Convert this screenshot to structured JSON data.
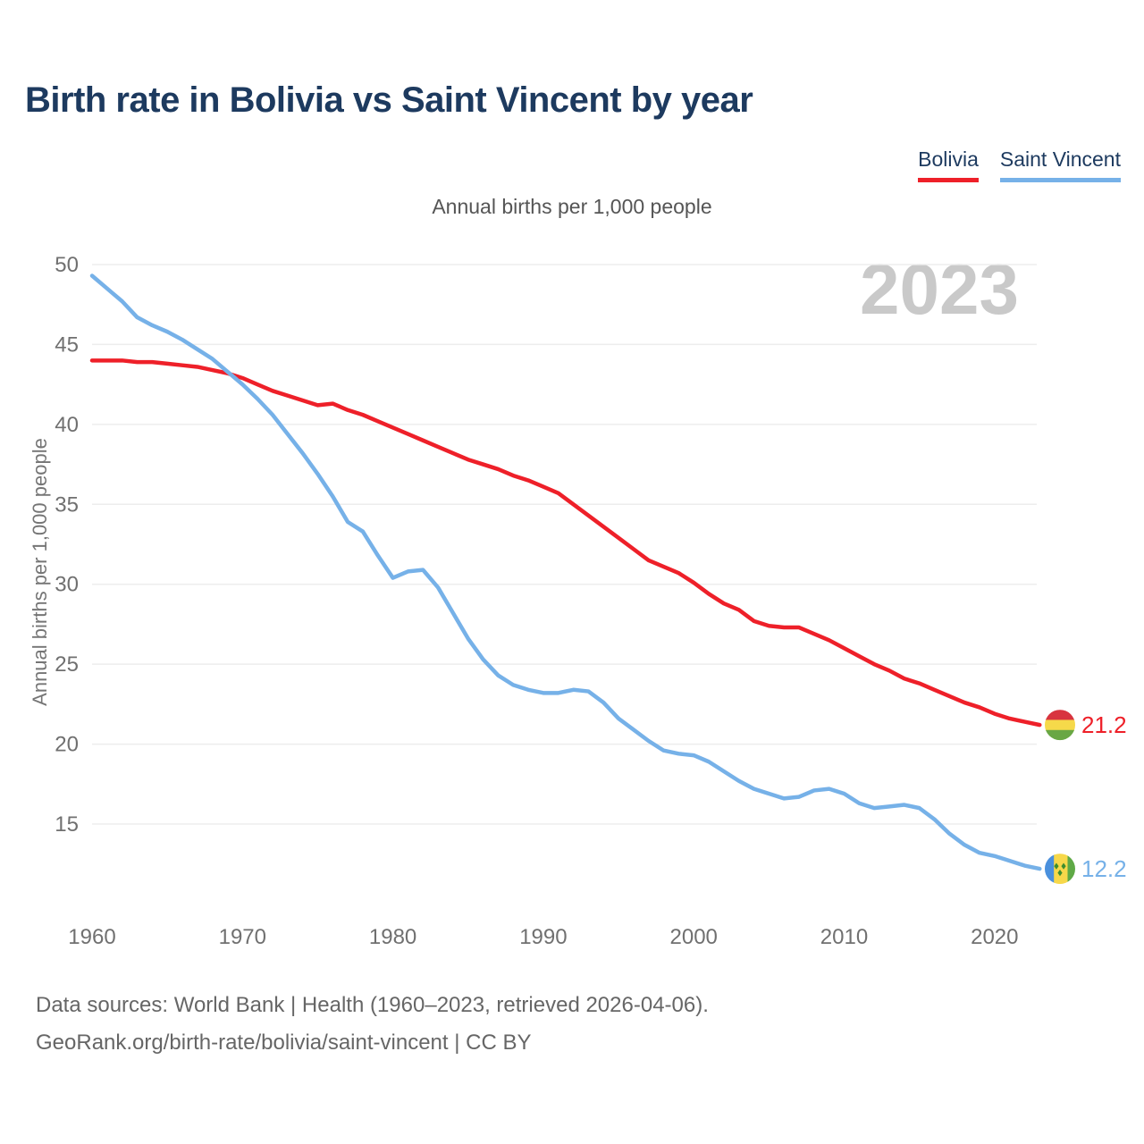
{
  "title": "Birth rate in Bolivia vs Saint Vincent by year",
  "subtitle": "Annual births per 1,000 people",
  "watermark_year": "2023",
  "y_axis_title": "Annual births per 1,000 people",
  "legend": [
    {
      "label": "Bolivia",
      "color": "#ee2029"
    },
    {
      "label": "Saint Vincent",
      "color": "#76b1e8"
    }
  ],
  "footer": {
    "line1": "Data sources: World Bank | Health (1960–2023, retrieved 2026-04-06).",
    "line2": "GeoRank.org/birth-rate/bolivia/saint-vincent | CC BY"
  },
  "colors": {
    "title": "#1d3a5f",
    "bolivia_line": "#ee2029",
    "saint_vincent_line": "#76b1e8",
    "axis_text": "#707070",
    "grid_line": "#ededed",
    "watermark": "#c9c9c9",
    "footer_text": "#666666"
  },
  "icons": {
    "bolivia_flag": {
      "stripes": [
        "#d8343f",
        "#f6d94a",
        "#69a744"
      ],
      "orientation": "horizontal"
    },
    "saint_vincent_flag": {
      "stripes": [
        "#4a90dd",
        "#f7d84a",
        "#5fa946"
      ],
      "diamond_color": "#3e8e2e",
      "orientation": "vertical"
    }
  },
  "chart_data": {
    "type": "line",
    "title": "Birth rate in Bolivia vs Saint Vincent by year",
    "subtitle": "Annual births per 1,000 people",
    "ylabel": "Annual births per 1,000 people",
    "xlabel": "",
    "grid": "horizontal",
    "legend_position": "top-right",
    "xticks": [
      1960,
      1970,
      1980,
      1990,
      2000,
      2010,
      2020
    ],
    "yticks": [
      15,
      20,
      25,
      30,
      35,
      40,
      45,
      50
    ],
    "xlim": [
      1960,
      2023
    ],
    "ylim": [
      11,
      51
    ],
    "x": [
      1960,
      1961,
      1962,
      1963,
      1964,
      1965,
      1966,
      1967,
      1968,
      1969,
      1970,
      1971,
      1972,
      1973,
      1974,
      1975,
      1976,
      1977,
      1978,
      1979,
      1980,
      1981,
      1982,
      1983,
      1984,
      1985,
      1986,
      1987,
      1988,
      1989,
      1990,
      1991,
      1992,
      1993,
      1994,
      1995,
      1996,
      1997,
      1998,
      1999,
      2000,
      2001,
      2002,
      2003,
      2004,
      2005,
      2006,
      2007,
      2008,
      2009,
      2010,
      2011,
      2012,
      2013,
      2014,
      2015,
      2016,
      2017,
      2018,
      2019,
      2020,
      2021,
      2022,
      2023
    ],
    "series": [
      {
        "name": "Bolivia",
        "color": "#ee2029",
        "end_label": "21.2",
        "flag": "bolivia_flag",
        "values": [
          44.0,
          44.0,
          44.0,
          43.9,
          43.9,
          43.8,
          43.7,
          43.6,
          43.4,
          43.2,
          42.9,
          42.5,
          42.1,
          41.8,
          41.5,
          41.2,
          41.3,
          40.9,
          40.6,
          40.2,
          39.8,
          39.4,
          39.0,
          38.6,
          38.2,
          37.8,
          37.5,
          37.2,
          36.8,
          36.5,
          36.1,
          35.7,
          35.0,
          34.3,
          33.6,
          32.9,
          32.2,
          31.5,
          31.1,
          30.7,
          30.1,
          29.4,
          28.8,
          28.4,
          27.7,
          27.4,
          27.3,
          27.3,
          26.9,
          26.5,
          26.0,
          25.5,
          25.0,
          24.6,
          24.1,
          23.8,
          23.4,
          23.0,
          22.6,
          22.3,
          21.9,
          21.6,
          21.4,
          21.2
        ]
      },
      {
        "name": "Saint Vincent",
        "color": "#76b1e8",
        "end_label": "12.2",
        "flag": "saint_vincent_flag",
        "values": [
          49.3,
          48.5,
          47.7,
          46.7,
          46.2,
          45.8,
          45.3,
          44.7,
          44.1,
          43.3,
          42.5,
          41.6,
          40.6,
          39.4,
          38.2,
          36.9,
          35.5,
          33.9,
          33.3,
          31.8,
          30.4,
          30.8,
          30.9,
          29.8,
          28.2,
          26.6,
          25.3,
          24.3,
          23.7,
          23.4,
          23.2,
          23.2,
          23.4,
          23.3,
          22.6,
          21.6,
          20.9,
          20.2,
          19.6,
          19.4,
          19.3,
          18.9,
          18.3,
          17.7,
          17.2,
          16.9,
          16.6,
          16.7,
          17.1,
          17.2,
          16.9,
          16.3,
          16.0,
          16.1,
          16.2,
          16.0,
          15.3,
          14.4,
          13.7,
          13.2,
          13.0,
          12.7,
          12.4,
          12.2
        ]
      }
    ]
  }
}
